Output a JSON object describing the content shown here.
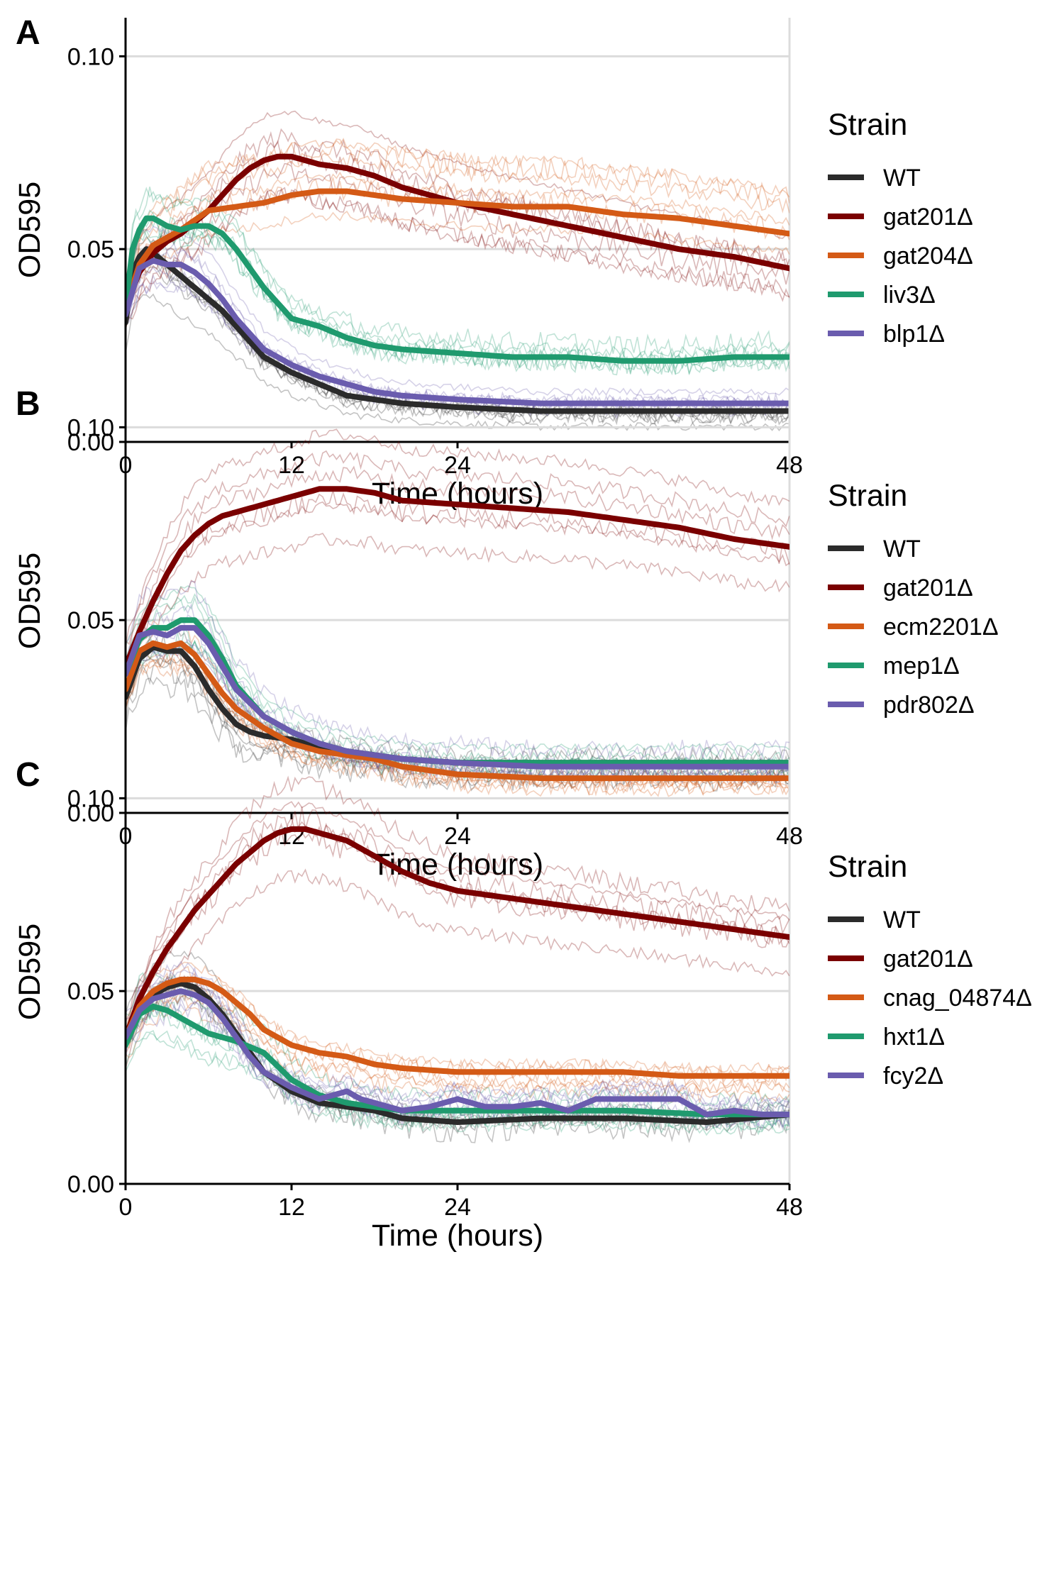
{
  "chart_data": [
    {
      "type": "line",
      "panel_label": "A",
      "xlabel": "Time (hours)",
      "ylabel": "OD595",
      "xlim": [
        0,
        48
      ],
      "ylim": [
        0,
        0.11
      ],
      "x_ticks": [
        0,
        12,
        24,
        48
      ],
      "y_ticks": [
        0.0,
        0.05,
        0.1
      ],
      "x_tick_labels": [
        "0",
        "12",
        "24",
        "48"
      ],
      "y_tick_labels": [
        "0.00",
        "0.05",
        "0.10"
      ],
      "grid": "horizontal major",
      "legend_title": "Strain",
      "legend_position": "right",
      "series": [
        {
          "name": "WT",
          "color": "#2b2b2b",
          "x": [
            0,
            0.5,
            1,
            1.5,
            2,
            3,
            4,
            5,
            6,
            7,
            8,
            9,
            10,
            12,
            14,
            16,
            18,
            20,
            24,
            30,
            36,
            42,
            48
          ],
          "y": [
            0.031,
            0.044,
            0.048,
            0.05,
            0.049,
            0.046,
            0.043,
            0.04,
            0.037,
            0.034,
            0.03,
            0.026,
            0.022,
            0.018,
            0.015,
            0.012,
            0.011,
            0.01,
            0.009,
            0.008,
            0.008,
            0.008,
            0.008
          ]
        },
        {
          "name": "gat201Δ",
          "color": "#7a0000",
          "x": [
            0,
            1,
            2,
            3,
            4,
            5,
            6,
            7,
            8,
            9,
            10,
            11,
            12,
            14,
            16,
            18,
            20,
            24,
            28,
            32,
            36,
            40,
            44,
            48
          ],
          "y": [
            0.035,
            0.044,
            0.049,
            0.052,
            0.054,
            0.057,
            0.06,
            0.064,
            0.068,
            0.071,
            0.073,
            0.074,
            0.074,
            0.072,
            0.071,
            0.069,
            0.066,
            0.062,
            0.059,
            0.056,
            0.053,
            0.05,
            0.048,
            0.045
          ]
        },
        {
          "name": "gat204Δ",
          "color": "#d45a16",
          "x": [
            0,
            1,
            2,
            3,
            4,
            6,
            8,
            10,
            12,
            14,
            16,
            18,
            20,
            24,
            28,
            32,
            36,
            40,
            44,
            48
          ],
          "y": [
            0.035,
            0.046,
            0.051,
            0.053,
            0.055,
            0.06,
            0.061,
            0.062,
            0.064,
            0.065,
            0.065,
            0.064,
            0.063,
            0.062,
            0.061,
            0.061,
            0.059,
            0.058,
            0.056,
            0.054
          ]
        },
        {
          "name": "liv3Δ",
          "color": "#1f9a6e",
          "x": [
            0,
            0.5,
            1,
            1.5,
            2,
            3,
            4,
            5,
            6,
            7,
            8,
            9,
            10,
            11,
            12,
            14,
            16,
            18,
            20,
            24,
            28,
            32,
            36,
            40,
            44,
            48
          ],
          "y": [
            0.035,
            0.05,
            0.055,
            0.058,
            0.058,
            0.056,
            0.055,
            0.056,
            0.056,
            0.054,
            0.05,
            0.045,
            0.04,
            0.036,
            0.032,
            0.03,
            0.027,
            0.025,
            0.024,
            0.023,
            0.022,
            0.022,
            0.021,
            0.021,
            0.022,
            0.022
          ]
        },
        {
          "name": "blp1Δ",
          "color": "#6a5cae",
          "x": [
            0,
            1,
            2,
            3,
            4,
            5,
            6,
            7,
            8,
            9,
            10,
            12,
            14,
            16,
            18,
            20,
            24,
            30,
            36,
            42,
            48
          ],
          "y": [
            0.033,
            0.045,
            0.047,
            0.046,
            0.046,
            0.044,
            0.041,
            0.037,
            0.032,
            0.028,
            0.024,
            0.02,
            0.017,
            0.015,
            0.013,
            0.012,
            0.011,
            0.01,
            0.01,
            0.01,
            0.01
          ]
        }
      ]
    },
    {
      "type": "line",
      "panel_label": "B",
      "xlabel": "Time (hours)",
      "ylabel": "OD595",
      "xlim": [
        0,
        48
      ],
      "ylim": [
        0,
        0.11
      ],
      "x_ticks": [
        0,
        12,
        24,
        48
      ],
      "y_ticks": [
        0.0,
        0.05,
        0.1
      ],
      "x_tick_labels": [
        "0",
        "12",
        "24",
        "48"
      ],
      "y_tick_labels": [
        "0.00",
        "0.05",
        "0.10"
      ],
      "grid": "horizontal major",
      "legend_title": "Strain",
      "legend_position": "right",
      "series": [
        {
          "name": "WT",
          "color": "#2b2b2b",
          "x": [
            0,
            1,
            2,
            3,
            4,
            5,
            6,
            7,
            8,
            9,
            10,
            12,
            14,
            16,
            18,
            20,
            24,
            30,
            36,
            42,
            48
          ],
          "y": [
            0.03,
            0.04,
            0.043,
            0.042,
            0.042,
            0.038,
            0.032,
            0.027,
            0.023,
            0.021,
            0.02,
            0.019,
            0.017,
            0.016,
            0.015,
            0.014,
            0.013,
            0.013,
            0.013,
            0.013,
            0.013
          ]
        },
        {
          "name": "gat201Δ",
          "color": "#7a0000",
          "x": [
            0,
            1,
            2,
            3,
            4,
            5,
            6,
            7,
            8,
            10,
            12,
            14,
            16,
            18,
            20,
            24,
            28,
            32,
            36,
            40,
            44,
            48
          ],
          "y": [
            0.038,
            0.047,
            0.055,
            0.062,
            0.068,
            0.072,
            0.075,
            0.077,
            0.078,
            0.08,
            0.082,
            0.084,
            0.084,
            0.083,
            0.081,
            0.08,
            0.079,
            0.078,
            0.076,
            0.074,
            0.071,
            0.069
          ]
        },
        {
          "name": "ecm2201Δ",
          "color": "#d45a16",
          "x": [
            0,
            1,
            2,
            3,
            4,
            5,
            6,
            7,
            8,
            10,
            12,
            14,
            16,
            18,
            20,
            24,
            30,
            36,
            42,
            48
          ],
          "y": [
            0.032,
            0.042,
            0.044,
            0.043,
            0.044,
            0.041,
            0.036,
            0.031,
            0.027,
            0.022,
            0.018,
            0.016,
            0.015,
            0.014,
            0.012,
            0.01,
            0.009,
            0.009,
            0.009,
            0.009
          ]
        },
        {
          "name": "mep1Δ",
          "color": "#1f9a6e",
          "x": [
            0,
            1,
            2,
            3,
            4,
            5,
            6,
            7,
            8,
            10,
            12,
            14,
            16,
            18,
            20,
            24,
            30,
            36,
            42,
            48
          ],
          "y": [
            0.036,
            0.045,
            0.048,
            0.048,
            0.05,
            0.05,
            0.046,
            0.04,
            0.033,
            0.025,
            0.021,
            0.018,
            0.016,
            0.015,
            0.014,
            0.013,
            0.013,
            0.013,
            0.013,
            0.013
          ]
        },
        {
          "name": "pdr802Δ",
          "color": "#6a5cae",
          "x": [
            0,
            1,
            2,
            3,
            4,
            5,
            6,
            7,
            8,
            10,
            12,
            14,
            16,
            18,
            20,
            24,
            30,
            36,
            42,
            48
          ],
          "y": [
            0.036,
            0.046,
            0.047,
            0.046,
            0.048,
            0.048,
            0.044,
            0.038,
            0.032,
            0.025,
            0.021,
            0.018,
            0.016,
            0.015,
            0.014,
            0.013,
            0.012,
            0.012,
            0.012,
            0.012
          ]
        }
      ]
    },
    {
      "type": "line",
      "panel_label": "C",
      "xlabel": "Time (hours)",
      "ylabel": "OD595",
      "xlim": [
        0,
        48
      ],
      "ylim": [
        0,
        0.11
      ],
      "x_ticks": [
        0,
        12,
        24,
        48
      ],
      "y_ticks": [
        0.0,
        0.05,
        0.1
      ],
      "x_tick_labels": [
        "0",
        "12",
        "24",
        "48"
      ],
      "y_tick_labels": [
        "0.00",
        "0.05",
        "0.10"
      ],
      "grid": "horizontal major",
      "legend_title": "Strain",
      "legend_position": "right",
      "series": [
        {
          "name": "WT",
          "color": "#2b2b2b",
          "x": [
            0,
            1,
            2,
            3,
            4,
            5,
            6,
            7,
            8,
            9,
            10,
            12,
            14,
            16,
            18,
            20,
            24,
            30,
            36,
            42,
            48
          ],
          "y": [
            0.038,
            0.045,
            0.049,
            0.051,
            0.052,
            0.051,
            0.048,
            0.044,
            0.039,
            0.034,
            0.029,
            0.024,
            0.021,
            0.02,
            0.019,
            0.017,
            0.016,
            0.017,
            0.017,
            0.016,
            0.018
          ]
        },
        {
          "name": "gat201Δ",
          "color": "#7a0000",
          "x": [
            0,
            1,
            2,
            3,
            4,
            5,
            6,
            7,
            8,
            9,
            10,
            11,
            12,
            13,
            14,
            16,
            18,
            20,
            22,
            24,
            28,
            32,
            36,
            40,
            44,
            48
          ],
          "y": [
            0.038,
            0.048,
            0.055,
            0.061,
            0.066,
            0.071,
            0.075,
            0.079,
            0.083,
            0.086,
            0.089,
            0.091,
            0.092,
            0.092,
            0.091,
            0.089,
            0.085,
            0.081,
            0.078,
            0.076,
            0.074,
            0.072,
            0.07,
            0.068,
            0.066,
            0.064
          ]
        },
        {
          "name": "cnag_04874Δ",
          "color": "#d45a16",
          "x": [
            0,
            1,
            2,
            3,
            4,
            5,
            6,
            7,
            8,
            9,
            10,
            12,
            14,
            16,
            18,
            20,
            24,
            28,
            32,
            36,
            40,
            44,
            48
          ],
          "y": [
            0.038,
            0.046,
            0.05,
            0.052,
            0.053,
            0.053,
            0.052,
            0.05,
            0.047,
            0.044,
            0.04,
            0.036,
            0.034,
            0.033,
            0.031,
            0.03,
            0.029,
            0.029,
            0.029,
            0.029,
            0.028,
            0.028,
            0.028
          ]
        },
        {
          "name": "hxt1Δ",
          "color": "#1f9a6e",
          "x": [
            0,
            1,
            2,
            3,
            4,
            5,
            6,
            8,
            10,
            12,
            14,
            16,
            18,
            20,
            24,
            30,
            36,
            42,
            48
          ],
          "y": [
            0.036,
            0.044,
            0.046,
            0.045,
            0.043,
            0.041,
            0.039,
            0.037,
            0.034,
            0.027,
            0.023,
            0.021,
            0.02,
            0.019,
            0.019,
            0.019,
            0.019,
            0.018,
            0.018
          ]
        },
        {
          "name": "fcy2Δ",
          "color": "#6a5cae",
          "x": [
            0,
            1,
            2,
            3,
            4,
            5,
            6,
            7,
            8,
            9,
            10,
            12,
            14,
            15,
            16,
            17,
            18,
            20,
            22,
            24,
            26,
            28,
            30,
            32,
            34,
            36,
            38,
            40,
            42,
            44,
            46,
            48
          ],
          "y": [
            0.038,
            0.045,
            0.048,
            0.049,
            0.05,
            0.049,
            0.047,
            0.043,
            0.038,
            0.033,
            0.029,
            0.025,
            0.022,
            0.023,
            0.024,
            0.022,
            0.021,
            0.019,
            0.02,
            0.022,
            0.02,
            0.02,
            0.021,
            0.019,
            0.022,
            0.022,
            0.022,
            0.022,
            0.018,
            0.019,
            0.018,
            0.018
          ]
        }
      ]
    }
  ]
}
